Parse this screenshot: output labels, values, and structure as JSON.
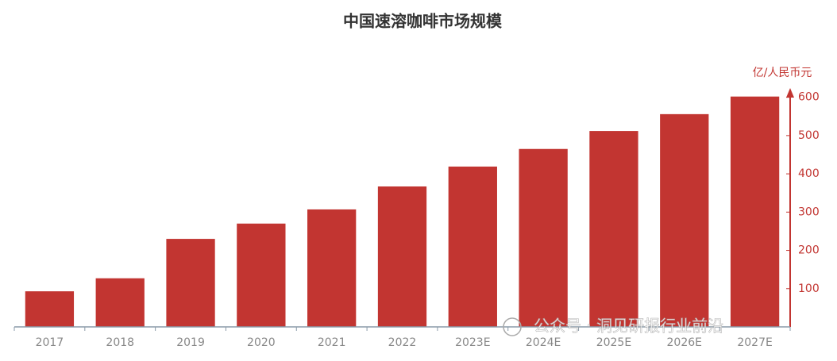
{
  "chart_data": {
    "type": "bar",
    "title": "中国速溶咖啡市场规模",
    "y_axis_label": "亿/人民币元",
    "categories": [
      "2017",
      "2018",
      "2019",
      "2020",
      "2021",
      "2022",
      "2023E",
      "2024E",
      "2025E",
      "2026E",
      "2027E"
    ],
    "values": [
      93,
      127,
      230,
      270,
      307,
      367,
      419,
      465,
      512,
      556,
      602
    ],
    "color": "#c23531",
    "ylim": [
      0,
      620
    ],
    "yticks": [
      100,
      200,
      300,
      400,
      500,
      600
    ],
    "y_axis_side": "right",
    "grid": false
  },
  "watermark": "公众号 · 洞见研报行业前沿"
}
